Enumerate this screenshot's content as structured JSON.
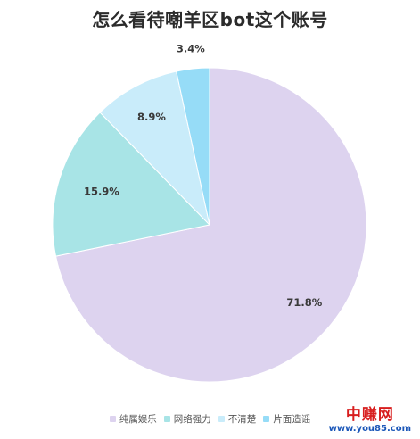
{
  "chart_data": {
    "type": "pie",
    "title": "怎么看待嘲羊区bot这个账号",
    "categories": [
      "纯属娱乐",
      "网络强力",
      "不清楚",
      "片面造谣"
    ],
    "values": [
      71.8,
      15.9,
      8.9,
      3.4
    ],
    "value_labels": [
      "71.8%",
      "15.9%",
      "8.9%",
      "3.4%"
    ],
    "colors": [
      "#ddd3ef",
      "#a8e4e6",
      "#c9ecfa",
      "#96dcf7"
    ],
    "legend_position": "bottom-center",
    "start_angle": "12 o'clock, clockwise"
  },
  "watermark": {
    "main": "中赚网",
    "sub": "www.you85.com"
  }
}
